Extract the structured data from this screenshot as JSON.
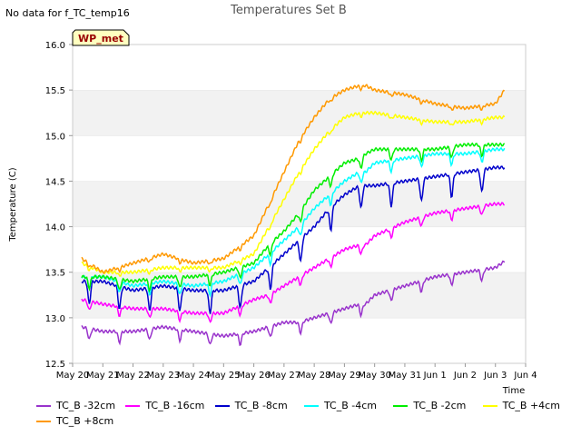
{
  "page": {
    "no_data_note": "No data for f_TC_temp16"
  },
  "chart_data": {
    "type": "line",
    "title": "Temperatures Set B",
    "xlabel": "Time",
    "ylabel": "Temperature (C)",
    "ylim": [
      12.5,
      16.0
    ],
    "yticks": [
      "12.5",
      "13.0",
      "13.5",
      "14.0",
      "14.5",
      "15.0",
      "15.5",
      "16.0"
    ],
    "xlim": [
      0,
      15
    ],
    "xtick_labels": [
      "May 20",
      "May 21",
      "May 22",
      "May 23",
      "May 24",
      "May 25",
      "May 26",
      "May 27",
      "May 28",
      "May 29",
      "May 30",
      "May 31",
      "Jun 1",
      "Jun 2",
      "Jun 3",
      "Jun 4"
    ],
    "x_unit": "days since May 20",
    "grid": "horizontal alternating bands",
    "legend_position": "bottom",
    "annotation": "WP_met",
    "x": [
      0.3,
      1,
      2,
      3,
      4,
      5,
      6,
      6.5,
      7,
      7.5,
      8,
      8.5,
      9,
      9.5,
      9.7,
      10,
      11,
      12,
      13,
      14,
      14.3
    ],
    "series": [
      {
        "name": "TC_B -32cm",
        "color": "#9933cc",
        "values": [
          12.9,
          12.85,
          12.85,
          12.9,
          12.85,
          12.8,
          12.85,
          12.9,
          12.95,
          12.95,
          13.0,
          13.05,
          13.1,
          13.15,
          13.15,
          13.25,
          13.35,
          13.45,
          13.5,
          13.55,
          13.62
        ]
      },
      {
        "name": "TC_B -16cm",
        "color": "#ff00ff",
        "values": [
          13.2,
          13.15,
          13.1,
          13.1,
          13.05,
          13.05,
          13.2,
          13.25,
          13.35,
          13.45,
          13.55,
          13.65,
          13.75,
          13.8,
          13.8,
          13.9,
          14.05,
          14.15,
          14.2,
          14.25,
          14.25
        ]
      },
      {
        "name": "TC_B -8cm",
        "color": "#0000cc",
        "values": [
          13.4,
          13.4,
          13.3,
          13.35,
          13.3,
          13.3,
          13.4,
          13.55,
          13.7,
          13.85,
          14.0,
          14.2,
          14.35,
          14.45,
          14.45,
          14.45,
          14.5,
          14.55,
          14.6,
          14.65,
          14.65
        ]
      },
      {
        "name": "TC_B -4cm",
        "color": "#00ffff",
        "values": [
          13.45,
          13.45,
          13.35,
          13.4,
          13.35,
          13.4,
          13.55,
          13.7,
          13.85,
          14.0,
          14.2,
          14.35,
          14.5,
          14.6,
          14.6,
          14.7,
          14.75,
          14.8,
          14.8,
          14.85,
          14.85
        ]
      },
      {
        "name": "TC_B -2cm",
        "color": "#00ee00",
        "values": [
          13.45,
          13.45,
          13.4,
          13.45,
          13.45,
          13.5,
          13.6,
          13.8,
          13.95,
          14.15,
          14.4,
          14.55,
          14.7,
          14.75,
          14.8,
          14.85,
          14.85,
          14.85,
          14.9,
          14.9,
          14.9
        ]
      },
      {
        "name": "TC_B +4cm",
        "color": "#ffff00",
        "values": [
          13.6,
          13.5,
          13.5,
          13.55,
          13.55,
          13.55,
          13.7,
          14.0,
          14.3,
          14.6,
          14.85,
          15.05,
          15.2,
          15.25,
          15.25,
          15.25,
          15.2,
          15.15,
          15.15,
          15.2,
          15.2
        ]
      },
      {
        "name": "TC_B +8cm",
        "color": "#ff9900",
        "values": [
          13.65,
          13.5,
          13.6,
          13.7,
          13.6,
          13.65,
          13.9,
          14.25,
          14.6,
          14.95,
          15.2,
          15.4,
          15.5,
          15.55,
          15.55,
          15.5,
          15.45,
          15.35,
          15.3,
          15.35,
          15.5
        ]
      }
    ]
  }
}
